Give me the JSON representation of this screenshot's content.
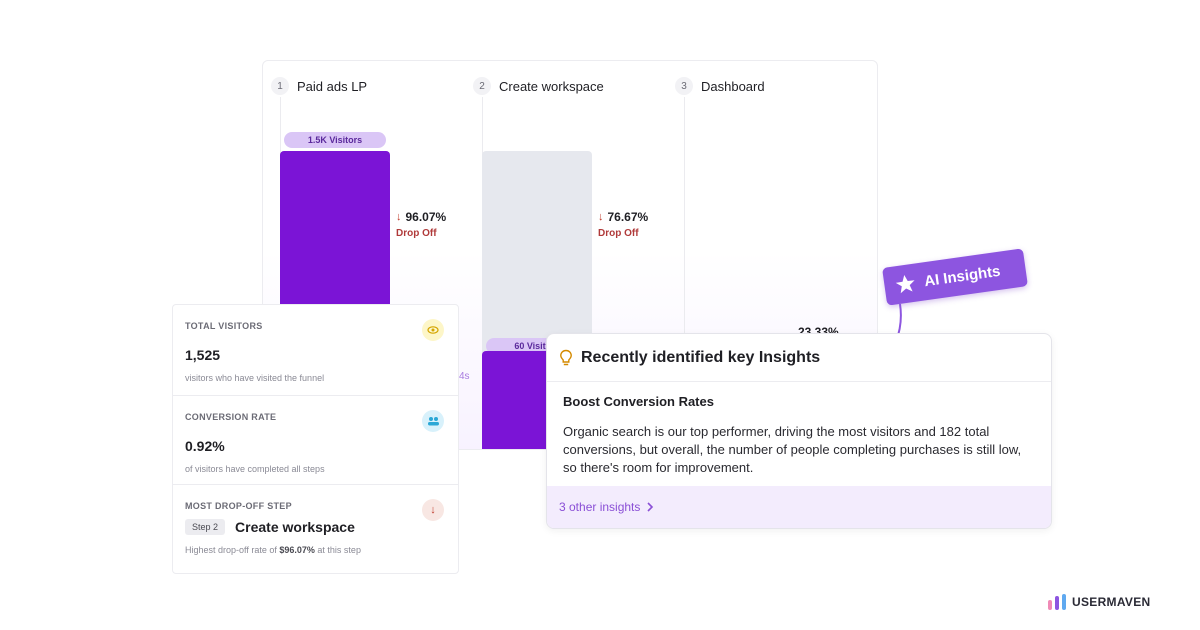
{
  "funnel": {
    "steps": [
      {
        "num": "1",
        "name": "Paid ads LP"
      },
      {
        "num": "2",
        "name": "Create workspace"
      },
      {
        "num": "3",
        "name": "Dashboard"
      }
    ],
    "visitor_pills": [
      "1.5K Visitors",
      "60 Visitors"
    ],
    "partial_label": "4s",
    "dropoffs": [
      {
        "pct": "96.07%",
        "label": "Drop Off"
      },
      {
        "pct": "76.67%",
        "label": "Drop Off"
      },
      {
        "pct": "23.33%"
      }
    ]
  },
  "stats": {
    "total_visitors": {
      "title": "TOTAL VISITORS",
      "value": "1,525",
      "desc": "visitors who have visited the funnel"
    },
    "conversion_rate": {
      "title": "CONVERSION RATE",
      "value": "0.92%",
      "desc": "of visitors have completed all steps"
    },
    "drop_off": {
      "title": "MOST DROP-OFF STEP",
      "step_tag": "Step 2",
      "step_name": "Create workspace",
      "desc_prefix": "Highest drop-off rate of ",
      "desc_value": "$96.07%",
      "desc_suffix": " at this step"
    }
  },
  "insights": {
    "title": "Recently identified key Insights",
    "subtitle": "Boost Conversion Rates",
    "text": "Organic search is our top performer, driving the most visitors and 182 total conversions, but overall, the number of people completing purchases is still low, so there's room for improvement.",
    "footer": "3 other insights"
  },
  "ai_badge": "AI Insights",
  "logo": "USERMAVEN",
  "colors": {
    "primary_purple": "#7b14d6",
    "accent_purple": "#8d55e0",
    "drop_red": "#b03a3a"
  }
}
